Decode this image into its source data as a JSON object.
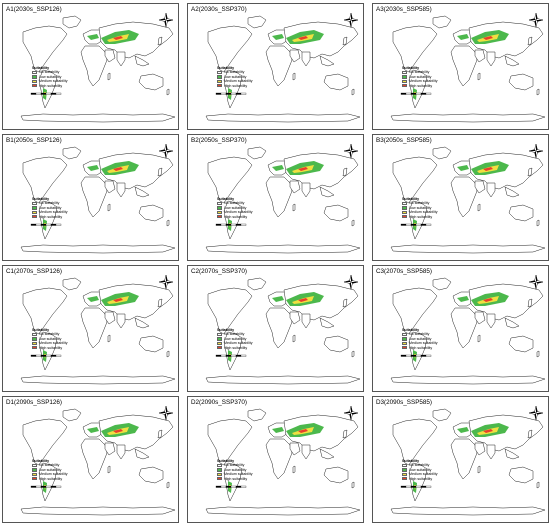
{
  "panels": [
    {
      "label": "A1(2030s_SSP126)"
    },
    {
      "label": "A2(2030s_SSP370)"
    },
    {
      "label": "A3(2030s_SSP585)"
    },
    {
      "label": "B1(2050s_SSP126)"
    },
    {
      "label": "B2(2050s_SSP370)"
    },
    {
      "label": "B3(2050s_SSP585)"
    },
    {
      "label": "C1(2070s_SSP126)"
    },
    {
      "label": "C2(2070s_SSP370)"
    },
    {
      "label": "C3(2070s_SSP585)"
    },
    {
      "label": "D1(2090s_SSP126)"
    },
    {
      "label": "D2(2090s_SSP370)"
    },
    {
      "label": "D3(2090s_SSP585)"
    }
  ],
  "legend": {
    "title": "Suitability",
    "classes": [
      {
        "label": "No suitability",
        "color": "#ffffff"
      },
      {
        "label": "Low suitability",
        "color": "#4cb84c"
      },
      {
        "label": "Medium suitability",
        "color": "#f0e040"
      },
      {
        "label": "High suitability",
        "color": "#e8402a"
      }
    ]
  },
  "map_icons": {
    "north_arrow": "compass-rose-icon",
    "scale_bar": "scale-bar"
  }
}
